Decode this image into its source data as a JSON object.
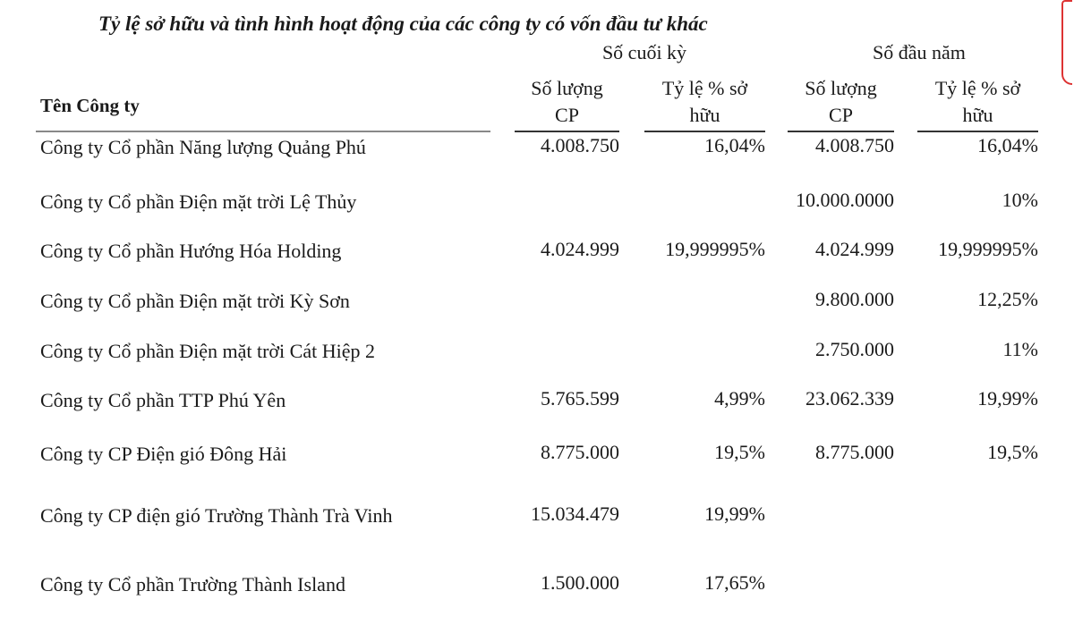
{
  "title": "Tỷ lệ sở hữu và tình hình hoạt động của các công ty có vốn đầu tư khác",
  "groups": {
    "end_period": "Số cuối kỳ",
    "start_year": "Số đầu năm"
  },
  "columns": {
    "company": "Tên Công ty",
    "shares_line1": "Số lượng",
    "shares_line2": "CP",
    "pct_line1": "Tỷ lệ % sở",
    "pct_line2": "hữu"
  },
  "rows": [
    {
      "name": "Công ty Cổ phần Năng lượng Quảng Phú",
      "end_shares": "4.008.750",
      "end_pct": "16,04%",
      "start_shares": "4.008.750",
      "start_pct": "16,04%"
    },
    {
      "name": "Công ty Cổ phần Điện mặt trời Lệ Thủy",
      "end_shares": "",
      "end_pct": "",
      "start_shares": "10.000.0000",
      "start_pct": "10%"
    },
    {
      "name": "Công ty Cổ phần Hướng Hóa Holding",
      "end_shares": "4.024.999",
      "end_pct": "19,999995%",
      "start_shares": "4.024.999",
      "start_pct": "19,999995%"
    },
    {
      "name": "Công ty Cổ phần Điện mặt trời Kỳ Sơn",
      "end_shares": "",
      "end_pct": "",
      "start_shares": "9.800.000",
      "start_pct": "12,25%"
    },
    {
      "name": "Công ty Cổ phần Điện mặt trời Cát Hiệp 2",
      "end_shares": "",
      "end_pct": "",
      "start_shares": "2.750.000",
      "start_pct": "11%"
    },
    {
      "name": "Công ty Cổ phần TTP Phú Yên",
      "end_shares": "5.765.599",
      "end_pct": "4,99%",
      "start_shares": "23.062.339",
      "start_pct": "19,99%"
    },
    {
      "name": "Công ty CP Điện gió Đông Hải",
      "end_shares": "8.775.000",
      "end_pct": "19,5%",
      "start_shares": "8.775.000",
      "start_pct": "19,5%"
    },
    {
      "name": "Công ty CP điện gió Trường Thành Trà Vinh",
      "end_shares": "15.034.479",
      "end_pct": "19,99%",
      "start_shares": "",
      "start_pct": ""
    },
    {
      "name": "Công ty Cổ phần Trường Thành Island",
      "end_shares": "1.500.000",
      "end_pct": "17,65%",
      "start_shares": "",
      "start_pct": ""
    }
  ],
  "colors": {
    "text": "#1a1a1a",
    "stamp": "#dd3333"
  }
}
